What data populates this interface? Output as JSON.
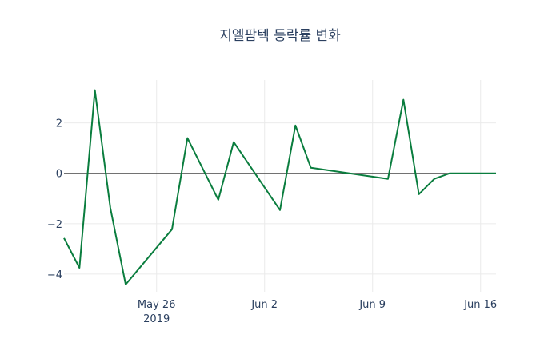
{
  "chart_data": {
    "type": "line",
    "title": "지엘팜텍 등락률 변화",
    "xlabel": "",
    "ylabel": "",
    "x": [
      "2019-05-20",
      "2019-05-21",
      "2019-05-22",
      "2019-05-23",
      "2019-05-24",
      "2019-05-27",
      "2019-05-28",
      "2019-05-30",
      "2019-05-31",
      "2019-06-03",
      "2019-06-04",
      "2019-06-05",
      "2019-06-10",
      "2019-06-11",
      "2019-06-12",
      "2019-06-13",
      "2019-06-14",
      "2019-06-17"
    ],
    "series": [
      {
        "name": "등락률",
        "color": "#0a7d3e",
        "values": [
          -2.57,
          -3.75,
          3.3,
          -1.37,
          -4.41,
          -2.22,
          1.4,
          -1.05,
          1.24,
          -1.46,
          1.9,
          0.22,
          -0.22,
          2.92,
          -0.83,
          -0.22,
          0.0,
          0.0
        ]
      }
    ],
    "xlim": [
      "2019-05-20",
      "2019-06-17"
    ],
    "ylim": [
      -4.7,
      3.7
    ],
    "yticks": [
      -4,
      -2,
      0,
      2
    ],
    "ytick_labels": [
      "−4",
      "−2",
      "0",
      "2"
    ],
    "xticks": [
      "2019-05-26",
      "2019-06-02",
      "2019-06-09",
      "2019-06-16"
    ],
    "xtick_labels": [
      "May 26",
      "Jun 2",
      "Jun 9",
      "Jun 16"
    ],
    "xtick_sublabel": "2019",
    "grid": true,
    "legend": "none"
  }
}
